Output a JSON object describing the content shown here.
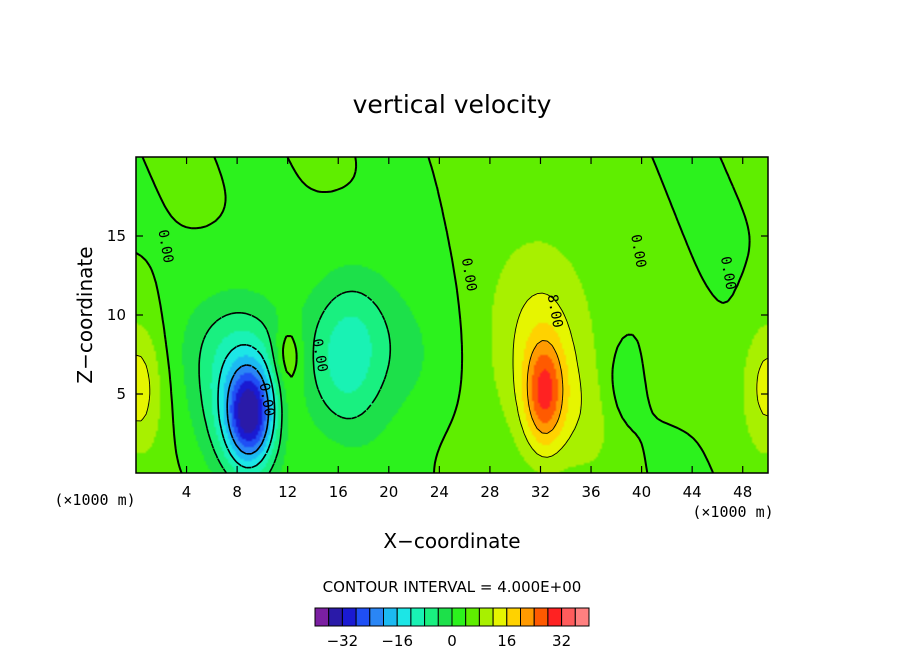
{
  "chart_data": {
    "type": "contour",
    "title": "vertical velocity",
    "xlabel": "X−coordinate",
    "ylabel": "Z−coordinate",
    "x_unit_left": "(×1000 m)",
    "x_unit_right": "(×1000 m)",
    "xlim": [
      0,
      50
    ],
    "ylim": [
      0,
      20
    ],
    "x_ticks": [
      4,
      8,
      12,
      16,
      20,
      24,
      28,
      32,
      36,
      40,
      44,
      48
    ],
    "x_tick_labels": [
      "4",
      "8",
      "12",
      "16",
      "20",
      "24",
      "28",
      "32",
      "36",
      "40",
      "44",
      "48"
    ],
    "y_ticks": [
      5,
      10,
      15
    ],
    "y_tick_labels": [
      "5",
      "10",
      "15"
    ],
    "contour_interval_text": "CONTOUR INTERVAL = 4.000E+00",
    "contour_labels": [
      {
        "text": "0.00",
        "x": 2.0,
        "y": 14.3
      },
      {
        "text": "0.00",
        "x": 26.0,
        "y": 12.5
      },
      {
        "text": "8.00",
        "x": 32.8,
        "y": 10.2
      },
      {
        "text": "0.00",
        "x": 39.4,
        "y": 14.0
      },
      {
        "text": "0.00",
        "x": 46.5,
        "y": 12.6
      },
      {
        "text": "0.00",
        "x": 14.2,
        "y": 7.4
      },
      {
        "text": "0.00",
        "x": 10.0,
        "y": 4.6
      }
    ],
    "field_features": [
      {
        "value": -28,
        "x": 9.0,
        "y": 3.6,
        "sx": 1.3,
        "sy": 2.2
      },
      {
        "value": -14,
        "x": 8.5,
        "y": 5.0,
        "sx": 2.6,
        "sy": 3.6
      },
      {
        "value": -10,
        "x": 16.5,
        "y": 6.5,
        "sx": 2.2,
        "sy": 3.3
      },
      {
        "value": -6,
        "x": 17.5,
        "y": 9.5,
        "sx": 2.5,
        "sy": 3.0
      },
      {
        "value": -4,
        "x": 22.0,
        "y": 7.0,
        "sx": 2.5,
        "sy": 3.5
      },
      {
        "value": -4,
        "x": 7.0,
        "y": 8.5,
        "sx": 3.0,
        "sy": 2.5
      },
      {
        "value": 8,
        "x": 12.0,
        "y": 7.5,
        "sx": 0.8,
        "sy": 1.4
      },
      {
        "value": 4,
        "x": 12.2,
        "y": 4.5,
        "sx": 0.9,
        "sy": 2.0
      },
      {
        "value": 18,
        "x": 32.3,
        "y": 5.0,
        "sx": 1.1,
        "sy": 2.4
      },
      {
        "value": 9,
        "x": 32.0,
        "y": 8.0,
        "sx": 3.3,
        "sy": 5.2
      },
      {
        "value": 10,
        "x": 0.2,
        "y": 5.5,
        "sx": 1.4,
        "sy": 3.0
      },
      {
        "value": 10,
        "x": 50.0,
        "y": 5.5,
        "sx": 1.4,
        "sy": 3.0
      },
      {
        "value": -4,
        "x": 38.5,
        "y": 5.5,
        "sx": 1.2,
        "sy": 2.0
      },
      {
        "value": 3,
        "x": 36.0,
        "y": 3.5,
        "sx": 2.2,
        "sy": 2.5
      },
      {
        "value": 3,
        "x": 43.0,
        "y": 6.5,
        "sx": 2.0,
        "sy": 1.8
      }
    ],
    "colorbar": {
      "levels": [
        -36,
        -32,
        -28,
        -24,
        -20,
        -16,
        -12,
        -8,
        -4,
        0,
        4,
        8,
        12,
        16,
        20,
        24,
        28,
        32,
        36
      ],
      "colors": [
        "#7b1fa2",
        "#2a1aa8",
        "#1a1ad2",
        "#1f4ff5",
        "#2a86f5",
        "#1cbaf2",
        "#1ce6e6",
        "#19f2b4",
        "#19f080",
        "#1de04a",
        "#2cf21d",
        "#5fee00",
        "#a8f000",
        "#e6f500",
        "#ffd200",
        "#ff9a00",
        "#ff5a00",
        "#ff2222",
        "#ff5c5c",
        "#ff8080",
        "#ff9f9f"
      ],
      "tick_values": [
        -32,
        -16,
        0,
        16,
        32
      ],
      "tick_labels": [
        "−32",
        "−16",
        "0",
        "16",
        "32"
      ]
    }
  }
}
